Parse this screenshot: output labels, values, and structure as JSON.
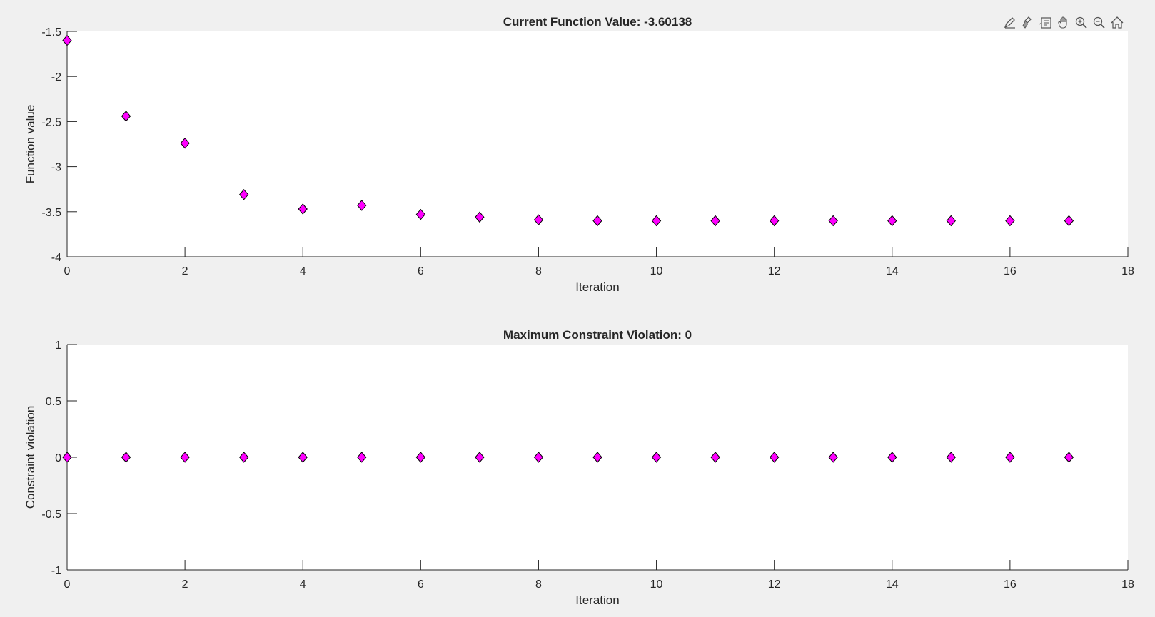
{
  "toolbar": {
    "buttons": [
      {
        "name": "edit-plot-icon"
      },
      {
        "name": "brush-icon"
      },
      {
        "name": "data-tips-icon"
      },
      {
        "name": "pan-icon"
      },
      {
        "name": "zoom-in-icon"
      },
      {
        "name": "zoom-out-icon"
      },
      {
        "name": "home-icon"
      }
    ]
  },
  "colors": {
    "marker_fill": "#ff00ff",
    "marker_edge": "#000000",
    "axes_bg": "#ffffff",
    "figure_bg": "#f0f0f0",
    "axis_line": "#262626"
  },
  "chart_data": [
    {
      "type": "scatter",
      "title": "Current Function Value: -3.60138",
      "xlabel": "Iteration",
      "ylabel": "Function value",
      "xlim": [
        0,
        18
      ],
      "ylim": [
        -4,
        -1.5
      ],
      "xticks": [
        "0",
        "2",
        "4",
        "6",
        "8",
        "10",
        "12",
        "14",
        "16",
        "18"
      ],
      "yticks": [
        "-1.5",
        "-2",
        "-2.5",
        "-3",
        "-3.5",
        "-4"
      ],
      "xtick_values": [
        0,
        2,
        4,
        6,
        8,
        10,
        12,
        14,
        16,
        18
      ],
      "ytick_values": [
        -1.5,
        -2,
        -2.5,
        -3,
        -3.5,
        -4
      ],
      "grid": false,
      "marker": "diamond",
      "x": [
        0,
        1,
        2,
        3,
        4,
        5,
        6,
        7,
        8,
        9,
        10,
        11,
        12,
        13,
        14,
        15,
        16,
        17
      ],
      "y": [
        -1.6,
        -2.44,
        -2.74,
        -3.31,
        -3.47,
        -3.43,
        -3.53,
        -3.56,
        -3.59,
        -3.6,
        -3.6,
        -3.6,
        -3.6,
        -3.6,
        -3.6,
        -3.6,
        -3.6,
        -3.6
      ]
    },
    {
      "type": "scatter",
      "title": "Maximum Constraint Violation: 0",
      "xlabel": "Iteration",
      "ylabel": "Constraint violation",
      "xlim": [
        0,
        18
      ],
      "ylim": [
        -1,
        1
      ],
      "xticks": [
        "0",
        "2",
        "4",
        "6",
        "8",
        "10",
        "12",
        "14",
        "16",
        "18"
      ],
      "yticks": [
        "1",
        "0.5",
        "0",
        "-0.5",
        "-1"
      ],
      "xtick_values": [
        0,
        2,
        4,
        6,
        8,
        10,
        12,
        14,
        16,
        18
      ],
      "ytick_values": [
        1,
        0.5,
        0,
        -0.5,
        -1
      ],
      "grid": false,
      "marker": "diamond",
      "x": [
        0,
        1,
        2,
        3,
        4,
        5,
        6,
        7,
        8,
        9,
        10,
        11,
        12,
        13,
        14,
        15,
        16,
        17
      ],
      "y": [
        0,
        0,
        0,
        0,
        0,
        0,
        0,
        0,
        0,
        0,
        0,
        0,
        0,
        0,
        0,
        0,
        0,
        0
      ]
    }
  ]
}
